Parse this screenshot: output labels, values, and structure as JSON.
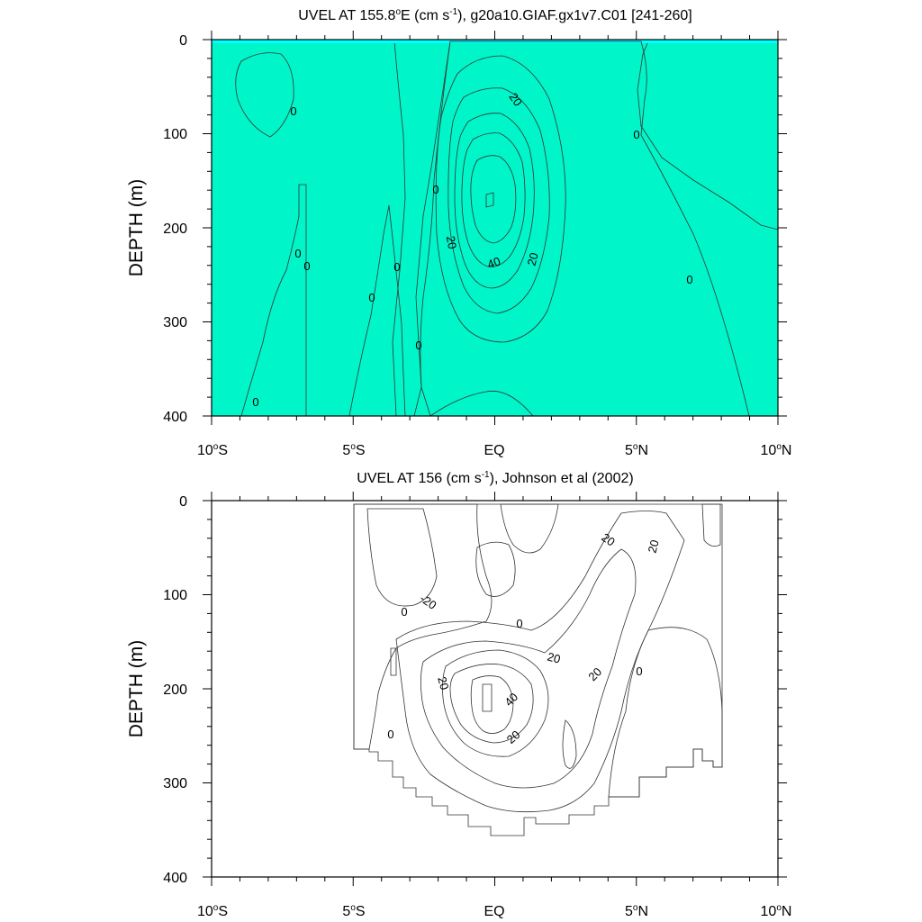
{
  "chart_data": [
    {
      "type": "contour",
      "title": {
        "pre": "UVEL AT 155.8",
        "sup": "o",
        "mid": "E (cm s",
        "sup2": "-1",
        "post": "), g20a10.GIAF.gx1v7.C01 [241-260]"
      },
      "ylabel": "DEPTH (m)",
      "xlim": [
        -10,
        10
      ],
      "ylim": [
        0,
        400
      ],
      "x_ticks": [
        {
          "num": "10",
          "sup": "o",
          "hem": "S"
        },
        {
          "num": "5",
          "sup": "o",
          "hem": "S"
        },
        {
          "num": "EQ",
          "sup": "",
          "hem": ""
        },
        {
          "num": "5",
          "sup": "o",
          "hem": "N"
        },
        {
          "num": "10",
          "sup": "o",
          "hem": "N"
        }
      ],
      "y_ticks": [
        "0",
        "100",
        "200",
        "300",
        "400"
      ],
      "core": {
        "lat": 0.0,
        "depth": 175,
        "max_value": 40
      },
      "contour_labels": [
        "20",
        "20",
        "40",
        "20",
        "0",
        "0",
        "0",
        "0",
        "0",
        "0",
        "0",
        "0",
        "0",
        "0"
      ]
    },
    {
      "type": "contour",
      "title": {
        "pre": "UVEL AT 156 (cm s",
        "sup": "-1",
        "post": "), Johnson et al (2002)"
      },
      "ylabel": "DEPTH (m)",
      "xlim": [
        -10,
        10
      ],
      "ylim": [
        0,
        400
      ],
      "x_ticks": [
        {
          "num": "10",
          "sup": "o",
          "hem": "S"
        },
        {
          "num": "5",
          "sup": "o",
          "hem": "S"
        },
        {
          "num": "EQ",
          "sup": "",
          "hem": ""
        },
        {
          "num": "5",
          "sup": "o",
          "hem": "N"
        },
        {
          "num": "10",
          "sup": "o",
          "hem": "N"
        }
      ],
      "y_ticks": [
        "0",
        "100",
        "200",
        "300",
        "400"
      ],
      "data_extent": {
        "lat_min": -5,
        "lat_max": 8
      },
      "core": {
        "lat": -0.2,
        "depth": 200,
        "max_value": 40
      },
      "contour_labels": [
        "20",
        "20",
        "-20",
        "0",
        "0",
        "20",
        "20",
        "40",
        "20",
        "20",
        "0",
        "0"
      ]
    }
  ],
  "colors": {
    "cyan": "#00ffff",
    "aqua_green": "#00f5c8",
    "green": "#22e84a",
    "lime": "#6ef200",
    "yellow": "#ffff00",
    "gold": "#f5d43a",
    "light_orange": "#f8b84e",
    "orange": "#f5a040",
    "dark_orange": "#f29030",
    "brown": "#c06020"
  }
}
